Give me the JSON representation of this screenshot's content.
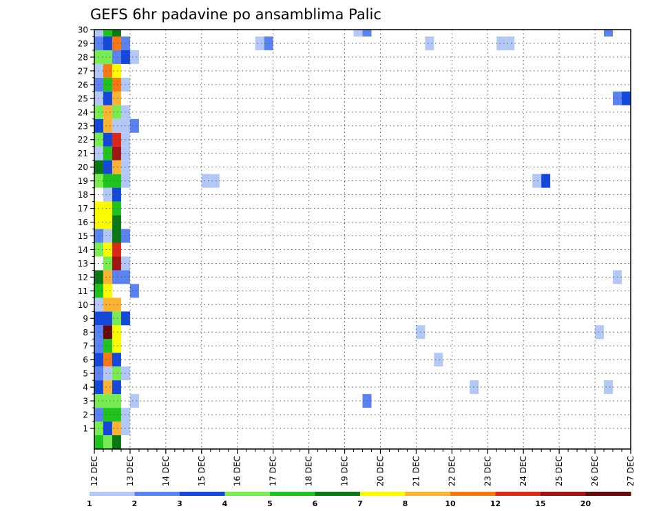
{
  "chart_data": {
    "type": "heatmap",
    "title": "GEFS 6hr padavine po ansamblima Palic",
    "xlabel": "",
    "ylabel": "",
    "x_step_hours": 6,
    "x_ticks": [
      "12 DEC",
      "13 DEC",
      "14 DEC",
      "15 DEC",
      "16 DEC",
      "17 DEC",
      "18 DEC",
      "19 DEC",
      "20 DEC",
      "21 DEC",
      "22 DEC",
      "23 DEC",
      "24 DEC",
      "25 DEC",
      "26 DEC",
      "27 DEC"
    ],
    "y_ticks": [
      "1",
      "2",
      "3",
      "4",
      "5",
      "6",
      "7",
      "8",
      "9",
      "10",
      "11",
      "12",
      "13",
      "14",
      "15",
      "16",
      "17",
      "18",
      "19",
      "20",
      "21",
      "22",
      "23",
      "24",
      "25",
      "26",
      "27",
      "28",
      "29",
      "30"
    ],
    "ylim": [
      0,
      30
    ],
    "grid": true,
    "colorbar": {
      "labels": [
        "1",
        "2",
        "3",
        "4",
        "5",
        "6",
        "7",
        "8",
        "10",
        "12",
        "15",
        "20"
      ],
      "colors": [
        "#b4c8f8",
        "#5a82f0",
        "#1448dc",
        "#78ec50",
        "#1ec31e",
        "#0a7814",
        "#fafa00",
        "#fab432",
        "#f77814",
        "#dc2814",
        "#a01414",
        "#640a0a"
      ]
    },
    "cells": [
      [
        "12 DEC 00",
        0,
        5
      ],
      [
        "12 DEC 06",
        0,
        4
      ],
      [
        "12 DEC 12",
        0,
        6
      ],
      [
        "12 DEC 00",
        1,
        4
      ],
      [
        "12 DEC 06",
        1,
        3
      ],
      [
        "12 DEC 12",
        1,
        8
      ],
      [
        "12 DEC 18",
        1,
        1
      ],
      [
        "12 DEC 00",
        2,
        2
      ],
      [
        "12 DEC 06",
        2,
        5
      ],
      [
        "12 DEC 12",
        2,
        5
      ],
      [
        "12 DEC 18",
        2,
        1
      ],
      [
        "12 DEC 00",
        3,
        4
      ],
      [
        "12 DEC 06",
        3,
        4
      ],
      [
        "12 DEC 12",
        3,
        4
      ],
      [
        "13 DEC 00",
        3,
        1
      ],
      [
        "12 DEC 00",
        4,
        3
      ],
      [
        "12 DEC 06",
        4,
        8
      ],
      [
        "12 DEC 12",
        4,
        3
      ],
      [
        "12 DEC 00",
        5,
        2
      ],
      [
        "12 DEC 06",
        5,
        1
      ],
      [
        "12 DEC 12",
        5,
        4
      ],
      [
        "12 DEC 18",
        5,
        1
      ],
      [
        "12 DEC 00",
        6,
        3
      ],
      [
        "12 DEC 06",
        6,
        10
      ],
      [
        "12 DEC 12",
        6,
        3
      ],
      [
        "12 DEC 00",
        7,
        2
      ],
      [
        "12 DEC 06",
        7,
        5
      ],
      [
        "12 DEC 12",
        7,
        7
      ],
      [
        "12 DEC 00",
        8,
        2
      ],
      [
        "12 DEC 06",
        8,
        20
      ],
      [
        "12 DEC 12",
        8,
        7
      ],
      [
        "12 DEC 00",
        9,
        3
      ],
      [
        "12 DEC 06",
        9,
        3
      ],
      [
        "12 DEC 12",
        9,
        4
      ],
      [
        "12 DEC 18",
        9,
        3
      ],
      [
        "12 DEC 00",
        10,
        1
      ],
      [
        "12 DEC 06",
        10,
        8
      ],
      [
        "12 DEC 12",
        10,
        8
      ],
      [
        "12 DEC 00",
        11,
        5
      ],
      [
        "12 DEC 06",
        11,
        7
      ],
      [
        "13 DEC 00",
        11,
        2
      ],
      [
        "12 DEC 00",
        12,
        6
      ],
      [
        "12 DEC 06",
        12,
        8
      ],
      [
        "12 DEC 12",
        12,
        2
      ],
      [
        "12 DEC 18",
        12,
        2
      ],
      [
        "12 DEC 06",
        13,
        4
      ],
      [
        "12 DEC 12",
        13,
        15
      ],
      [
        "12 DEC 18",
        13,
        1
      ],
      [
        "12 DEC 00",
        14,
        4
      ],
      [
        "12 DEC 06",
        14,
        7
      ],
      [
        "12 DEC 12",
        14,
        12
      ],
      [
        "12 DEC 00",
        15,
        2
      ],
      [
        "12 DEC 06",
        15,
        1
      ],
      [
        "12 DEC 12",
        15,
        6
      ],
      [
        "12 DEC 18",
        15,
        2
      ],
      [
        "12 DEC 00",
        16,
        7
      ],
      [
        "12 DEC 06",
        16,
        7
      ],
      [
        "12 DEC 12",
        16,
        6
      ],
      [
        "12 DEC 00",
        17,
        7
      ],
      [
        "12 DEC 06",
        17,
        7
      ],
      [
        "12 DEC 12",
        17,
        5
      ],
      [
        "12 DEC 06",
        18,
        1
      ],
      [
        "12 DEC 12",
        18,
        3
      ],
      [
        "12 DEC 00",
        19,
        4
      ],
      [
        "12 DEC 06",
        19,
        5
      ],
      [
        "12 DEC 12",
        19,
        5
      ],
      [
        "12 DEC 18",
        19,
        1
      ],
      [
        "15 DEC 00",
        19,
        1
      ],
      [
        "15 DEC 06",
        19,
        1
      ],
      [
        "24 DEC 06",
        19,
        1
      ],
      [
        "24 DEC 12",
        19,
        3
      ],
      [
        "12 DEC 00",
        20,
        6
      ],
      [
        "12 DEC 06",
        20,
        3
      ],
      [
        "12 DEC 12",
        20,
        8
      ],
      [
        "12 DEC 18",
        20,
        1
      ],
      [
        "12 DEC 00",
        21,
        1
      ],
      [
        "12 DEC 06",
        21,
        5
      ],
      [
        "12 DEC 12",
        21,
        15
      ],
      [
        "12 DEC 18",
        21,
        1
      ],
      [
        "12 DEC 00",
        22,
        4
      ],
      [
        "12 DEC 06",
        22,
        3
      ],
      [
        "12 DEC 12",
        22,
        12
      ],
      [
        "12 DEC 18",
        22,
        1
      ],
      [
        "12 DEC 00",
        23,
        3
      ],
      [
        "12 DEC 06",
        23,
        8
      ],
      [
        "12 DEC 12",
        23,
        1
      ],
      [
        "12 DEC 18",
        23,
        1
      ],
      [
        "13 DEC 00",
        23,
        2
      ],
      [
        "12 DEC 00",
        24,
        4
      ],
      [
        "12 DEC 06",
        24,
        8
      ],
      [
        "12 DEC 12",
        24,
        4
      ],
      [
        "12 DEC 18",
        24,
        1
      ],
      [
        "12 DEC 00",
        25,
        1
      ],
      [
        "12 DEC 06",
        25,
        3
      ],
      [
        "12 DEC 12",
        25,
        8
      ],
      [
        "26 DEC 12",
        25,
        2
      ],
      [
        "26 DEC 18",
        25,
        3
      ],
      [
        "12 DEC 00",
        26,
        2
      ],
      [
        "12 DEC 06",
        26,
        5
      ],
      [
        "12 DEC 12",
        26,
        10
      ],
      [
        "12 DEC 18",
        26,
        1
      ],
      [
        "12 DEC 00",
        27,
        1
      ],
      [
        "12 DEC 06",
        27,
        10
      ],
      [
        "12 DEC 12",
        27,
        7
      ],
      [
        "12 DEC 00",
        28,
        4
      ],
      [
        "12 DEC 06",
        28,
        4
      ],
      [
        "12 DEC 12",
        28,
        2
      ],
      [
        "12 DEC 18",
        28,
        3
      ],
      [
        "13 DEC 00",
        28,
        1
      ],
      [
        "12 DEC 00",
        29,
        2
      ],
      [
        "12 DEC 06",
        29,
        3
      ],
      [
        "12 DEC 12",
        29,
        10
      ],
      [
        "12 DEC 18",
        29,
        2
      ],
      [
        "16 DEC 12",
        29,
        1
      ],
      [
        "16 DEC 18",
        29,
        2
      ],
      [
        "21 DEC 06",
        29,
        1
      ],
      [
        "23 DEC 06",
        29,
        1
      ],
      [
        "23 DEC 12",
        29,
        1
      ],
      [
        "12 DEC 00",
        30,
        1
      ],
      [
        "12 DEC 06",
        30,
        5
      ],
      [
        "12 DEC 12",
        30,
        6
      ],
      [
        "19 DEC 06",
        30,
        1
      ],
      [
        "19 DEC 12",
        30,
        2
      ],
      [
        "26 DEC 06",
        30,
        2
      ],
      [
        "19 DEC 12",
        3,
        2
      ],
      [
        "21 DEC 00",
        8,
        1
      ],
      [
        "21 DEC 12",
        6,
        1
      ],
      [
        "22 DEC 12",
        4,
        1
      ],
      [
        "26 DEC 00",
        8,
        1
      ],
      [
        "26 DEC 06",
        4,
        1
      ],
      [
        "26 DEC 12",
        12,
        1
      ]
    ]
  }
}
